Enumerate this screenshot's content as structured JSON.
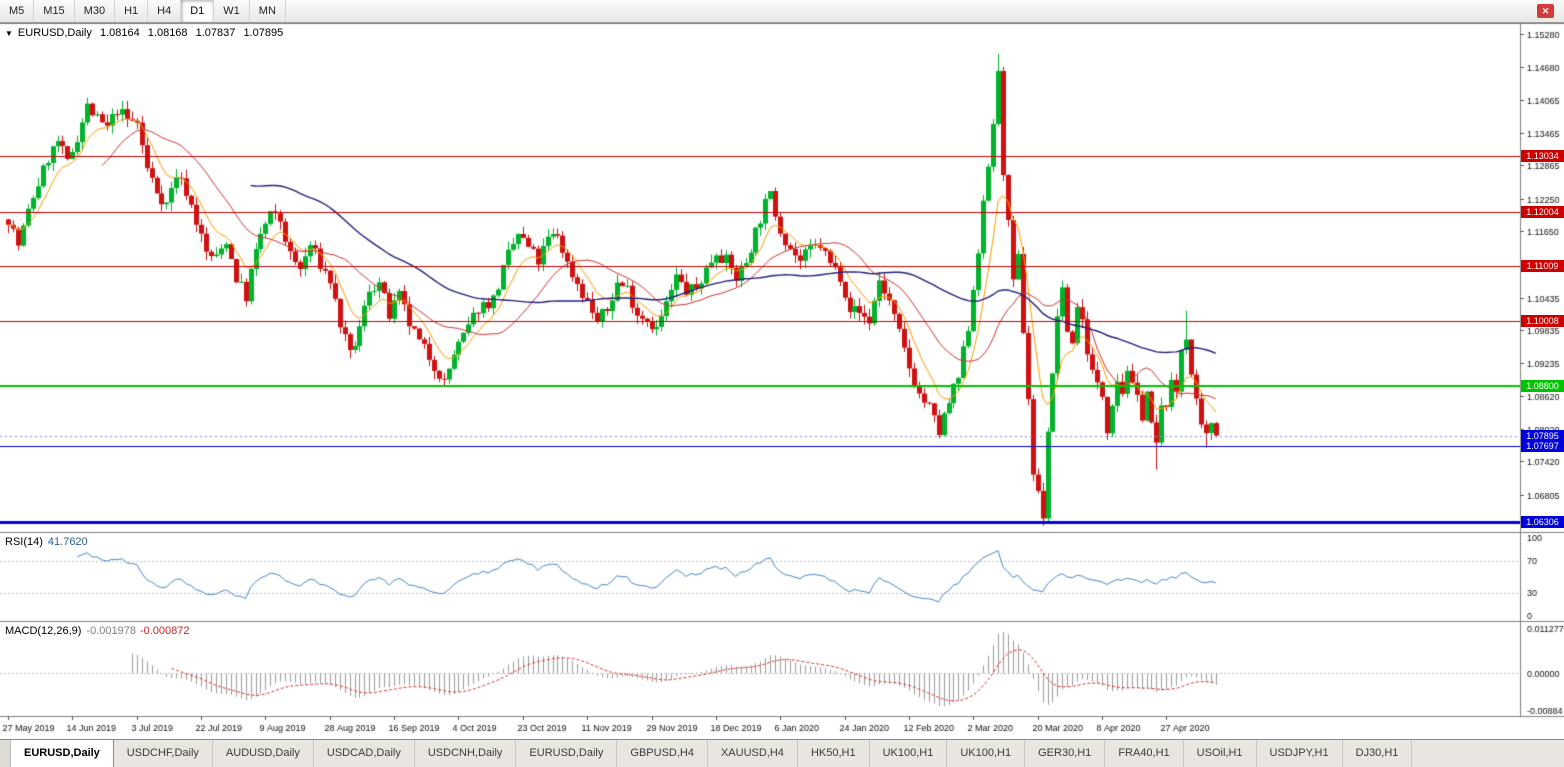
{
  "toolbar": {
    "timeframes": [
      "M5",
      "M15",
      "M30",
      "H1",
      "H4",
      "D1",
      "W1",
      "MN"
    ],
    "active": "D1",
    "close_icon": "✕"
  },
  "header": {
    "marker": "▼",
    "symbol": "EURUSD,Daily",
    "open": "1.08164",
    "high": "1.08168",
    "low": "1.07837",
    "close": "1.07895"
  },
  "rsi_panel": {
    "title": "RSI(14)",
    "value": "41.7620",
    "axis_labels": [
      "100",
      "70",
      "30",
      "0"
    ]
  },
  "macd_panel": {
    "title": "MACD(12,26,9)",
    "macd_value": "-0.001978",
    "signal_value": "-0.000872",
    "axis_top": "0.011277",
    "axis_zero": "0.00000",
    "axis_bottom": "-0.00884"
  },
  "tabs": {
    "active_index": 0,
    "items": [
      "EURUSD,Daily",
      "USDCHF,Daily",
      "AUDUSD,Daily",
      "USDCAD,Daily",
      "USDCNH,Daily",
      "EURUSD,Daily",
      "GBPUSD,H4",
      "XAUUSD,H4",
      "HK50,H1",
      "UK100,H1",
      "UK100,H1",
      "GER30,H1",
      "FRA40,H1",
      "USOil,H1",
      "USDJPY,H1",
      "DJ30,H1"
    ]
  },
  "chart_data": {
    "type": "candlestick",
    "symbol": "EURUSD",
    "timeframe": "Daily",
    "current_ohlc": {
      "open": 1.08164,
      "high": 1.08168,
      "low": 1.07837,
      "close": 1.07895
    },
    "y_range": [
      1.0612,
      1.1545
    ],
    "y_ticks": [
      "1.15280",
      "1.14680",
      "1.14065",
      "1.13465",
      "1.12865",
      "1.12250",
      "1.11650",
      "1.10435",
      "1.09835",
      "1.09235",
      "1.08620",
      "1.08020",
      "1.07420",
      "1.06805"
    ],
    "x_labels": [
      "27 May 2019",
      "14 Jun 2019",
      "3 Jul 2019",
      "22 Jul 2019",
      "9 Aug 2019",
      "28 Aug 2019",
      "16 Sep 2019",
      "4 Oct 2019",
      "23 Oct 2019",
      "11 Nov 2019",
      "29 Nov 2019",
      "18 Dec 2019",
      "6 Jan 2020",
      "24 Jan 2020",
      "12 Feb 2020",
      "2 Mar 2020",
      "20 Mar 2020",
      "8 Apr 2020",
      "27 Apr 2020"
    ],
    "candles_per_label": 13,
    "num_candles": 245,
    "seed": 7,
    "price_anchors": [
      [
        0,
        1.119
      ],
      [
        2,
        1.114
      ],
      [
        5,
        1.123
      ],
      [
        8,
        1.13
      ],
      [
        10,
        1.133
      ],
      [
        12,
        1.129
      ],
      [
        14,
        1.134
      ],
      [
        16,
        1.1395
      ],
      [
        18,
        1.137
      ],
      [
        20,
        1.1355
      ],
      [
        22,
        1.139
      ],
      [
        24,
        1.137
      ],
      [
        26,
        1.1365
      ],
      [
        28,
        1.128
      ],
      [
        30,
        1.124
      ],
      [
        32,
        1.1215
      ],
      [
        34,
        1.127
      ],
      [
        36,
        1.124
      ],
      [
        38,
        1.1185
      ],
      [
        40,
        1.1125
      ],
      [
        42,
        1.1115
      ],
      [
        44,
        1.115
      ],
      [
        46,
        1.108
      ],
      [
        48,
        1.1045
      ],
      [
        49,
        1.109
      ],
      [
        51,
        1.116
      ],
      [
        53,
        1.1195
      ],
      [
        55,
        1.1185
      ],
      [
        57,
        1.112
      ],
      [
        59,
        1.1095
      ],
      [
        61,
        1.114
      ],
      [
        63,
        1.1105
      ],
      [
        65,
        1.1075
      ],
      [
        67,
        1.0995
      ],
      [
        69,
        1.0935
      ],
      [
        71,
        1.0985
      ],
      [
        73,
        1.106
      ],
      [
        75,
        1.107
      ],
      [
        77,
        1.101
      ],
      [
        79,
        1.1045
      ],
      [
        81,
        1.0995
      ],
      [
        83,
        1.096
      ],
      [
        85,
        1.0935
      ],
      [
        87,
        1.0905
      ],
      [
        88,
        1.0885
      ],
      [
        90,
        1.094
      ],
      [
        92,
        1.097
      ],
      [
        95,
        1.1025
      ],
      [
        98,
        1.104
      ],
      [
        101,
        1.112
      ],
      [
        103,
        1.116
      ],
      [
        105,
        1.1135
      ],
      [
        107,
        1.111
      ],
      [
        109,
        1.115
      ],
      [
        111,
        1.116
      ],
      [
        113,
        1.1105
      ],
      [
        115,
        1.107
      ],
      [
        117,
        1.1035
      ],
      [
        119,
        1.1
      ],
      [
        121,
        1.102
      ],
      [
        123,
        1.107
      ],
      [
        125,
        1.106
      ],
      [
        127,
        1.1015
      ],
      [
        129,
        1.1005
      ],
      [
        131,
        1.0985
      ],
      [
        133,
        1.103
      ],
      [
        135,
        1.108
      ],
      [
        137,
        1.1055
      ],
      [
        139,
        1.106
      ],
      [
        141,
        1.1095
      ],
      [
        143,
        1.113
      ],
      [
        145,
        1.111
      ],
      [
        147,
        1.108
      ],
      [
        149,
        1.111
      ],
      [
        151,
        1.1165
      ],
      [
        153,
        1.1215
      ],
      [
        154,
        1.123
      ],
      [
        156,
        1.117
      ],
      [
        158,
        1.1135
      ],
      [
        160,
        1.111
      ],
      [
        162,
        1.113
      ],
      [
        164,
        1.114
      ],
      [
        166,
        1.1105
      ],
      [
        168,
        1.1085
      ],
      [
        170,
        1.1025
      ],
      [
        172,
        1.1015
      ],
      [
        174,
        1.1
      ],
      [
        176,
        1.1075
      ],
      [
        178,
        1.1035
      ],
      [
        180,
        1.0975
      ],
      [
        182,
        1.0915
      ],
      [
        184,
        1.0865
      ],
      [
        186,
        1.084
      ],
      [
        188,
        1.0795
      ],
      [
        190,
        1.085
      ],
      [
        192,
        1.0895
      ],
      [
        194,
        1.099
      ],
      [
        196,
        1.1135
      ],
      [
        198,
        1.1285
      ],
      [
        200,
        1.145
      ],
      [
        201,
        1.128
      ],
      [
        202,
        1.1175
      ],
      [
        203,
        1.1065
      ],
      [
        204,
        1.1115
      ],
      [
        205,
        1.0985
      ],
      [
        206,
        1.086
      ],
      [
        207,
        1.072
      ],
      [
        209,
        1.0645
      ],
      [
        210,
        1.08
      ],
      [
        211,
        1.0895
      ],
      [
        212,
        1.1015
      ],
      [
        213,
        1.105
      ],
      [
        214,
        1.0985
      ],
      [
        215,
        1.096
      ],
      [
        216,
        1.103
      ],
      [
        217,
        1.1
      ],
      [
        218,
        1.095
      ],
      [
        219,
        1.0905
      ],
      [
        220,
        1.088
      ],
      [
        221,
        1.0865
      ],
      [
        222,
        1.0805
      ],
      [
        223,
        1.0855
      ],
      [
        224,
        1.0895
      ],
      [
        225,
        1.087
      ],
      [
        226,
        1.0915
      ],
      [
        227,
        1.0875
      ],
      [
        228,
        1.0855
      ],
      [
        229,
        1.083
      ],
      [
        230,
        1.087
      ],
      [
        231,
        1.0805
      ],
      [
        232,
        1.0775
      ],
      [
        233,
        1.0835
      ],
      [
        234,
        1.0855
      ],
      [
        235,
        1.088
      ],
      [
        236,
        1.087
      ],
      [
        237,
        1.095
      ],
      [
        238,
        1.0975
      ],
      [
        239,
        1.09
      ],
      [
        240,
        1.0845
      ],
      [
        241,
        1.08
      ],
      [
        242,
        1.0785
      ],
      [
        243,
        1.0815
      ],
      [
        244,
        1.07895
      ]
    ],
    "wick_overrides": {
      "48": {
        "low": 1.1027
      },
      "88": {
        "low": 1.0879
      },
      "200": {
        "high": 1.1492
      },
      "209": {
        "low": 1.0636
      },
      "232": {
        "low": 1.0727
      },
      "238": {
        "high": 1.1019
      },
      "242": {
        "low": 1.0767
      }
    },
    "horizontal_lines": [
      {
        "price": 1.13034,
        "label": "1.13034",
        "color": "#cc0000",
        "width": 1
      },
      {
        "price": 1.12004,
        "label": "1.12004",
        "color": "#cc0000",
        "width": 1
      },
      {
        "price": 1.11009,
        "label": "1.11009",
        "color": "#cc0000",
        "width": 1
      },
      {
        "price": 1.10008,
        "label": "1.10008",
        "color": "#cc0000",
        "width": 1
      },
      {
        "price": 1.088,
        "label": "1.08800",
        "color": "#00c400",
        "width": 2
      },
      {
        "price": 1.07697,
        "label": "1.07697",
        "color": "#0000dd",
        "width": 1
      },
      {
        "price": 1.06306,
        "label": "1.06306",
        "color": "#0000dd",
        "width": 3
      }
    ],
    "current_price": {
      "price": 1.07895,
      "label": "1.07895",
      "color": "#0000dd"
    },
    "moving_averages": [
      {
        "method": "EMA",
        "period": 8,
        "color": "#ff9c00"
      },
      {
        "method": "SMA",
        "period": 20,
        "color": "#d23333"
      },
      {
        "method": "SMA",
        "period": 50,
        "color": "#20207a"
      }
    ],
    "indicators": {
      "rsi": {
        "period": 14,
        "current": 41.762,
        "levels": [
          70,
          30
        ],
        "color": "#4a86c8"
      },
      "macd": {
        "fast": 12,
        "slow": 26,
        "signal": 9,
        "current_macd": -0.001978,
        "current_signal": -0.000872,
        "histogram_color": "#9b9b9b",
        "signal_color": "#e03333"
      }
    },
    "colors": {
      "up": "#00b22c",
      "down": "#d01111",
      "background": "#ffffff",
      "border": "#808080"
    }
  }
}
